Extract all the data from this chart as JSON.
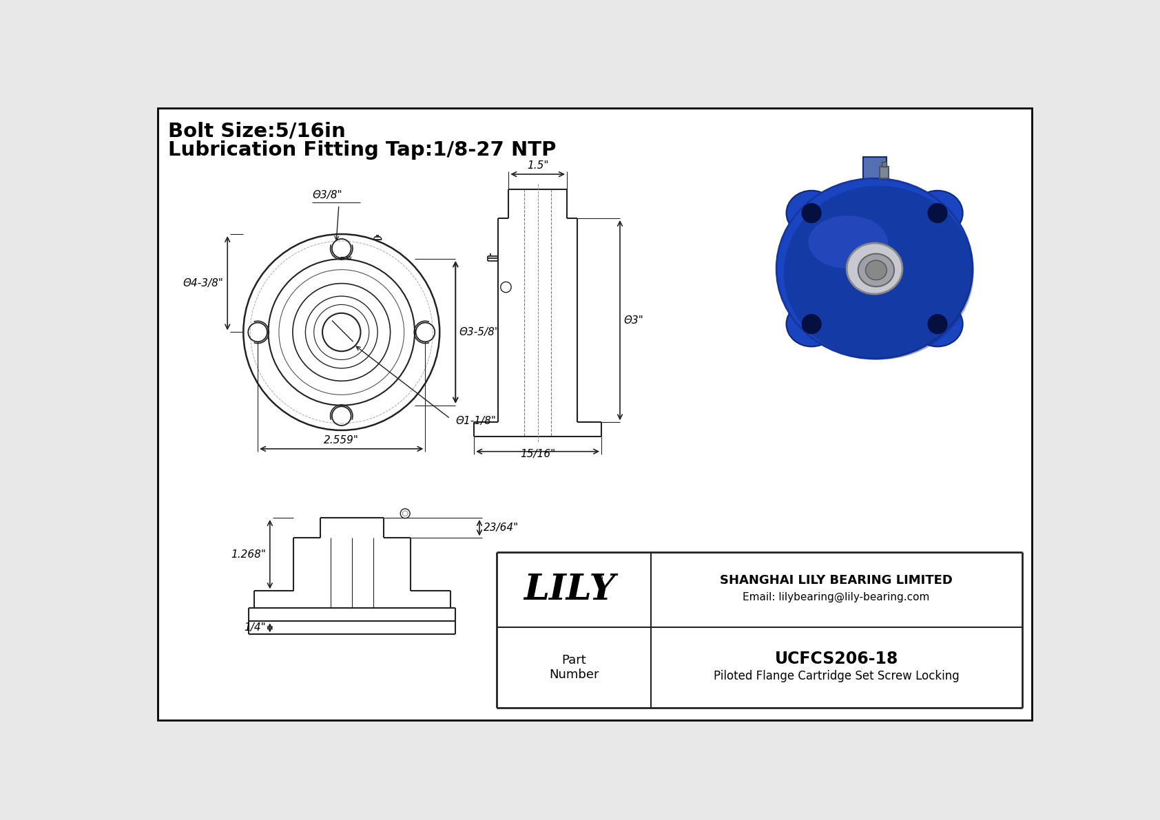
{
  "bg_color": "#e8e8e8",
  "border_color": "#000000",
  "line_color": "#222222",
  "title_line1": "Bolt Size:5/16in",
  "title_line2": "Lubrication Fitting Tap:1/8-27 NTP",
  "dim_labels": {
    "bolt_hole_dia": "Θ3/8\"",
    "flange_dia": "Θ4-3/8\"",
    "bolt_circle_dia": "Θ3-5/8\"",
    "bore_dia": "Θ1-1/8\"",
    "bolt_hole_spacing": "2.559\"",
    "side_width": "1.5\"",
    "side_bore": "Θ3\"",
    "side_thickness": "15/16\"",
    "bottom_hub": "1.268\"",
    "bottom_flange": "23/64\"",
    "bottom_base": "1/4\""
  },
  "company_name": "LILY",
  "company_reg": "®",
  "company_full": "SHANGHAI LILY BEARING LIMITED",
  "company_email": "Email: lilybearing@lily-bearing.com",
  "part_label": "Part\nNumber",
  "part_number": "UCFCS206-18",
  "part_desc": "Piloted Flange Cartridge Set Screw Locking"
}
